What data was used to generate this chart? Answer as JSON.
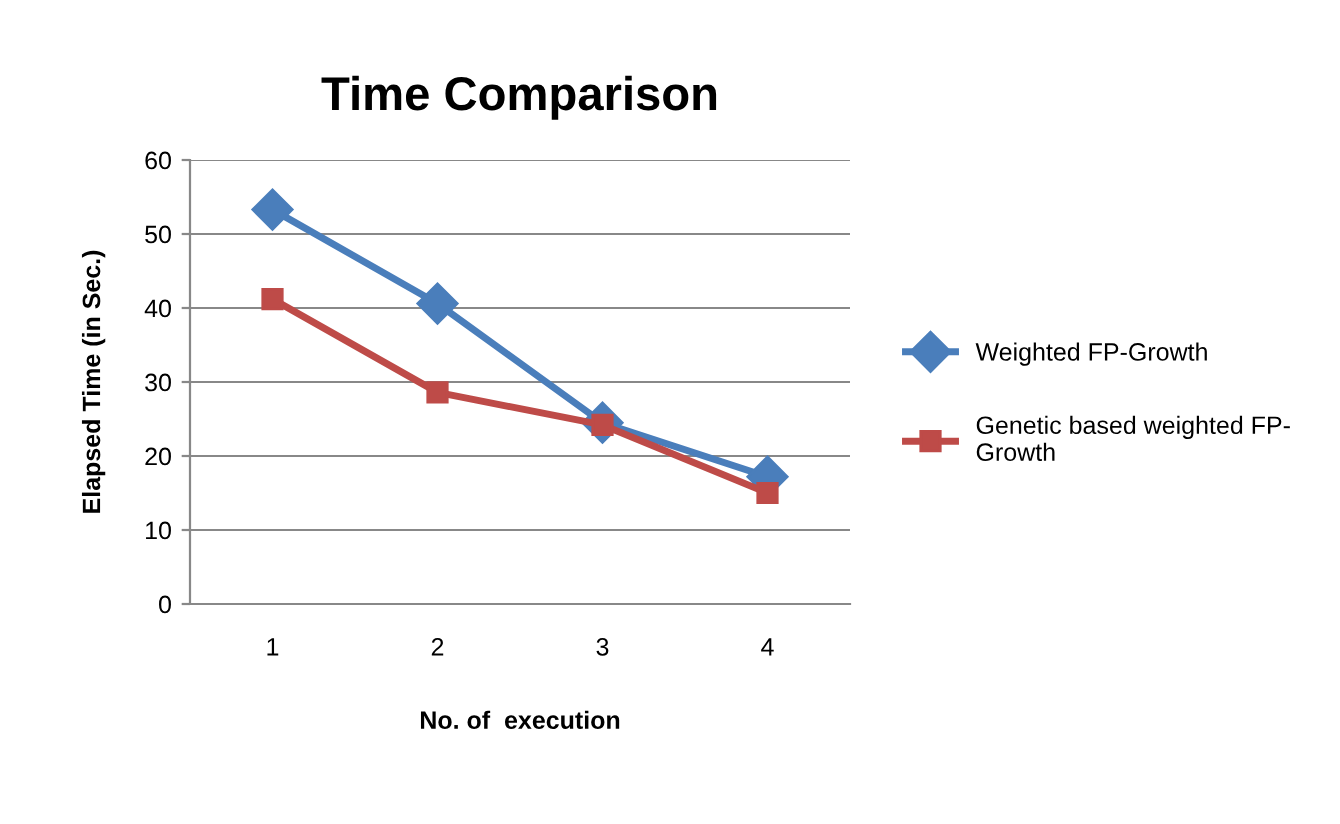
{
  "chart_data": {
    "type": "line",
    "title": "Time Comparison",
    "xlabel": "No. of  execution",
    "ylabel": "Elapsed Time (in Sec.)",
    "categories": [
      "1",
      "2",
      "3",
      "4"
    ],
    "series": [
      {
        "name": "Weighted FP-Growth",
        "color": "#4a7ebb",
        "marker": "diamond",
        "values": [
          53.3,
          40.6,
          24.5,
          17.2
        ]
      },
      {
        "name": "Genetic based weighted FP-Growth",
        "color": "#be4b48",
        "marker": "square",
        "values": [
          41.2,
          28.6,
          24.2,
          15.0
        ]
      }
    ],
    "ylim": [
      0,
      60
    ],
    "yticks": [
      0,
      10,
      20,
      30,
      40,
      50,
      60
    ],
    "grid": "y",
    "legend": "right",
    "line_style": "solid"
  }
}
